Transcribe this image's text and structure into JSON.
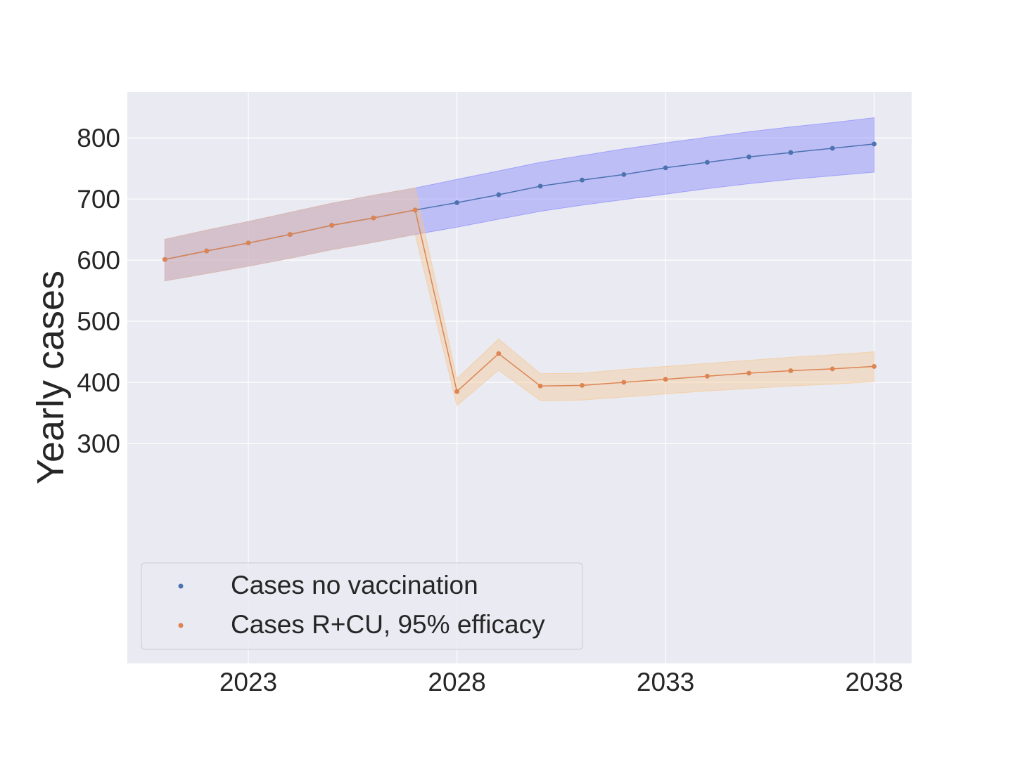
{
  "chart_data": {
    "type": "line",
    "title": "",
    "xlabel": "",
    "ylabel": "Yearly cases",
    "xlim": [
      2020.1,
      2038.9
    ],
    "ylim": [
      -60,
      875
    ],
    "xticks": [
      2023,
      2028,
      2033,
      2038
    ],
    "xtick_labels": [
      "2023",
      "2028",
      "2033",
      "2038"
    ],
    "yticks": [
      300,
      400,
      500,
      600,
      700,
      800
    ],
    "ytick_labels": [
      "300",
      "400",
      "500",
      "600",
      "700",
      "800"
    ],
    "grid": true,
    "legend_position": "lower-left",
    "background": "#eaeaf2",
    "series": [
      {
        "name": "Cases no vaccination",
        "color": "#4c72b0",
        "band_color": "#8080ff",
        "x": [
          2021,
          2022,
          2023,
          2024,
          2025,
          2026,
          2027,
          2028,
          2029,
          2030,
          2031,
          2032,
          2033,
          2034,
          2035,
          2036,
          2037,
          2038
        ],
        "y": [
          601,
          615,
          628,
          642,
          657,
          669,
          682,
          694,
          707,
          721,
          731,
          740,
          751,
          760,
          769,
          776,
          783,
          790
        ],
        "lower": [
          566,
          578,
          590,
          603,
          617,
          629,
          642,
          654,
          667,
          680,
          690,
          699,
          708,
          717,
          725,
          732,
          738,
          744
        ],
        "upper": [
          634,
          649,
          663,
          678,
          693,
          706,
          718,
          732,
          746,
          760,
          771,
          782,
          792,
          801,
          810,
          818,
          825,
          833
        ]
      },
      {
        "name": "Cases R+CU, 95% efficacy",
        "color": "#dd8452",
        "band_color": "#f5c68c",
        "x": [
          2021,
          2022,
          2023,
          2024,
          2025,
          2026,
          2027,
          2028,
          2029,
          2030,
          2031,
          2032,
          2033,
          2034,
          2035,
          2036,
          2037,
          2038
        ],
        "y": [
          601,
          615,
          628,
          642,
          657,
          669,
          682,
          385,
          447,
          394,
          395,
          400,
          405,
          410,
          415,
          419,
          422,
          426
        ],
        "lower": [
          566,
          578,
          590,
          603,
          617,
          629,
          642,
          362,
          420,
          370,
          371,
          376,
          381,
          386,
          390,
          394,
          397,
          401
        ],
        "upper": [
          634,
          649,
          663,
          678,
          693,
          706,
          718,
          406,
          471,
          414,
          415,
          421,
          426,
          431,
          436,
          441,
          445,
          450
        ]
      }
    ]
  }
}
